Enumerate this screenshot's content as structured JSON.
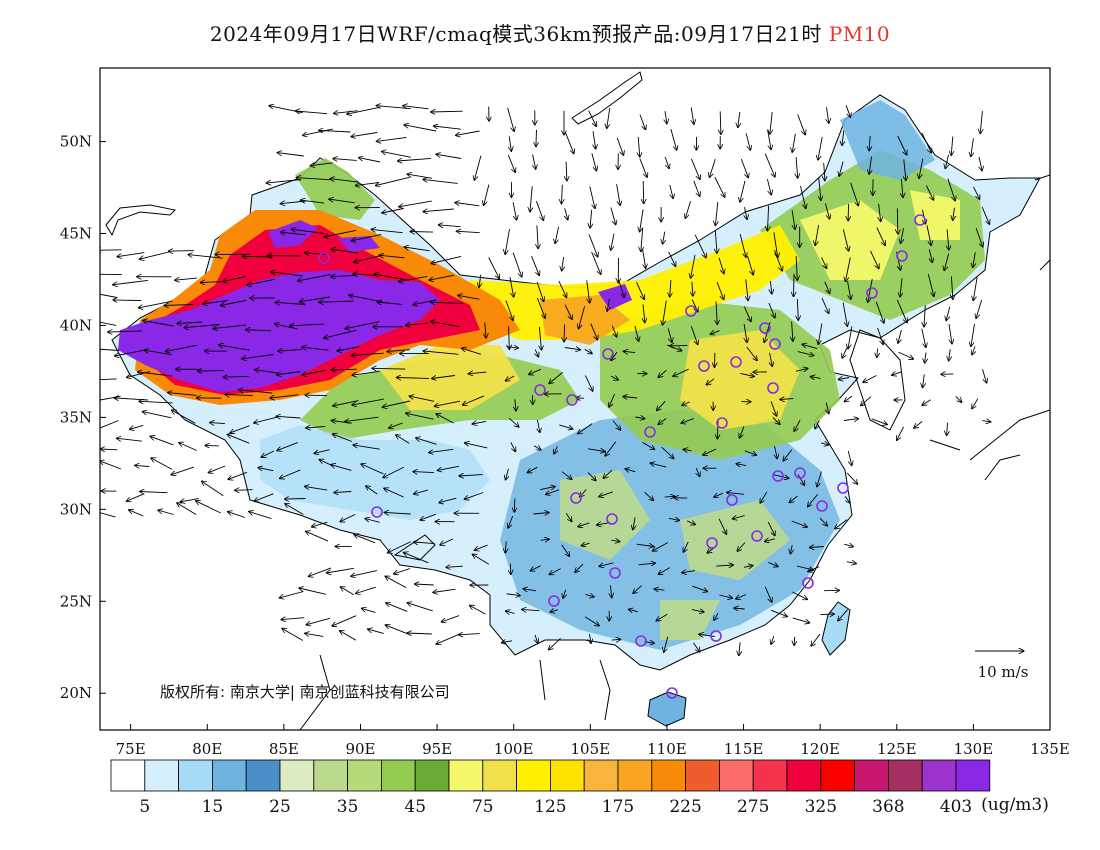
{
  "title": {
    "prefix": "2024年09月17日WRF/cmaq模式36km预报产品:09月17日21时",
    "species": "PM10"
  },
  "map": {
    "lon_range": [
      73,
      135
    ],
    "lat_range": [
      18,
      54
    ],
    "lon_ticks": [
      "75E",
      "80E",
      "85E",
      "90E",
      "95E",
      "100E",
      "105E",
      "110E",
      "115E",
      "120E",
      "125E",
      "130E",
      "135E"
    ],
    "lat_ticks": [
      "20N",
      "25N",
      "30N",
      "35N",
      "40N",
      "45N",
      "50N"
    ],
    "wind_ref_label": "10 m/s",
    "copyright": "版权所有: 南京大学| 南京创蓝科技有限公司",
    "station_marker_color": "#8a2be2"
  },
  "legend": {
    "unit": "(ug/m3)",
    "labels": [
      "5",
      "15",
      "25",
      "35",
      "45",
      "75",
      "125",
      "175",
      "225",
      "275",
      "325",
      "368",
      "403"
    ],
    "colors": [
      "#ffffff",
      "#d6effd",
      "#a6dcf6",
      "#6fb4e0",
      "#4a8fc8",
      "#dcebc2",
      "#bcd98d",
      "#b6d97a",
      "#93cb50",
      "#6aaa35",
      "#f4f86a",
      "#f0e04a",
      "#fff000",
      "#fde200",
      "#f9b43e",
      "#f8a322",
      "#f88a08",
      "#ef5d2e",
      "#fb6d6d",
      "#f4334c",
      "#f0003c",
      "#fb0000",
      "#c8156e",
      "#a42e62",
      "#9b33cc",
      "#8b27e6"
    ]
  }
}
